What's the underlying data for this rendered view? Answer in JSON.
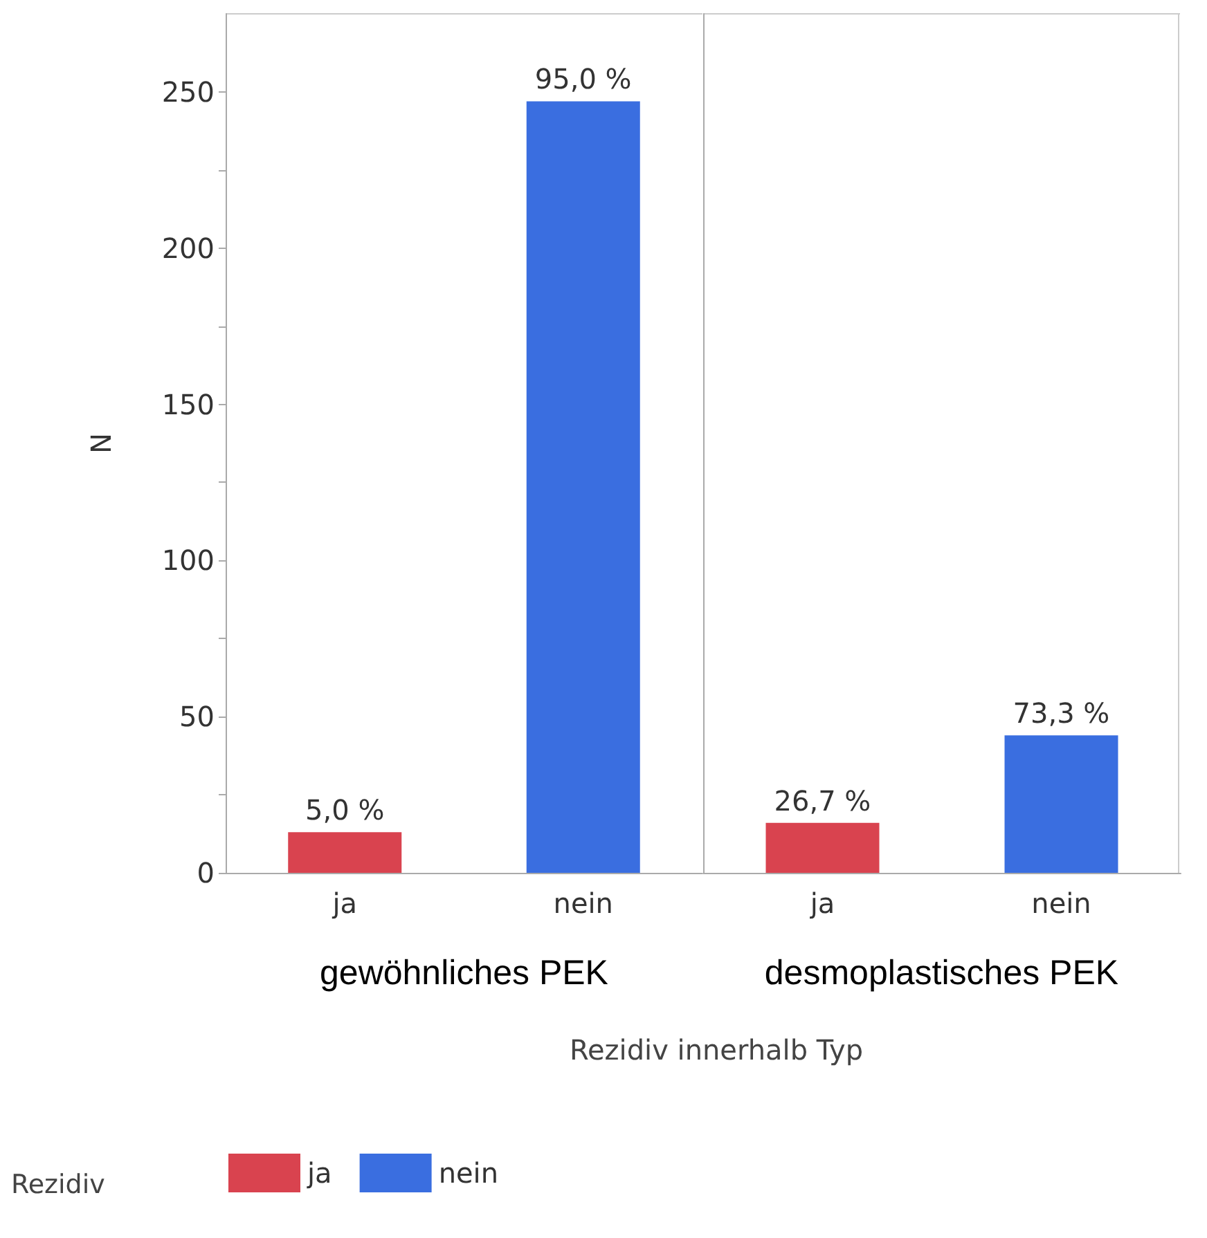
{
  "chart_data": [
    {
      "type": "bar",
      "categories": [
        "ja",
        "nein"
      ],
      "stacked": true,
      "series": [
        {
          "name": "ja",
          "color": "#d9434f",
          "values": [
            13,
            null
          ]
        },
        {
          "name": "nein",
          "color": "#3a6ee0",
          "values": [
            null,
            247
          ]
        }
      ],
      "ylabel": "N",
      "xlabel": "gewöhnliches PEK",
      "legend_title": "Rezidiv",
      "legend": "bottom left",
      "ylim": [
        0,
        275
      ],
      "yticks": [
        0,
        {
          "value": 25,
          "label": null
        },
        50,
        {
          "value": 75,
          "label": null
        },
        100,
        {
          "value": 125,
          "label": null
        },
        150,
        {
          "value": 175,
          "label": null
        },
        200,
        {
          "value": 225,
          "label": null
        },
        250
      ],
      "annotations": [
        {
          "text": "5,0 %",
          "x": "ja",
          "y": 13
        },
        {
          "text": "95,0 %",
          "x": "nein",
          "y": 247
        },
        "Rezidiv innerhalb Typ"
      ],
      "grid": false
    },
    {
      "type": "bar",
      "categories": [
        "ja",
        "nein"
      ],
      "values": [
        16,
        44
      ],
      "colors": [
        "#d9434f",
        "#3a6ee0"
      ],
      "xlabel": "desmoplastisches PEK",
      "ylim": [
        0,
        275
      ],
      "tick_labels": "x",
      "annotations": [
        {
          "text": "26,7 %",
          "x": "ja",
          "y": 16
        },
        {
          "text": "73,3 %",
          "x": "nein",
          "y": 44
        }
      ],
      "grid": false
    }
  ]
}
